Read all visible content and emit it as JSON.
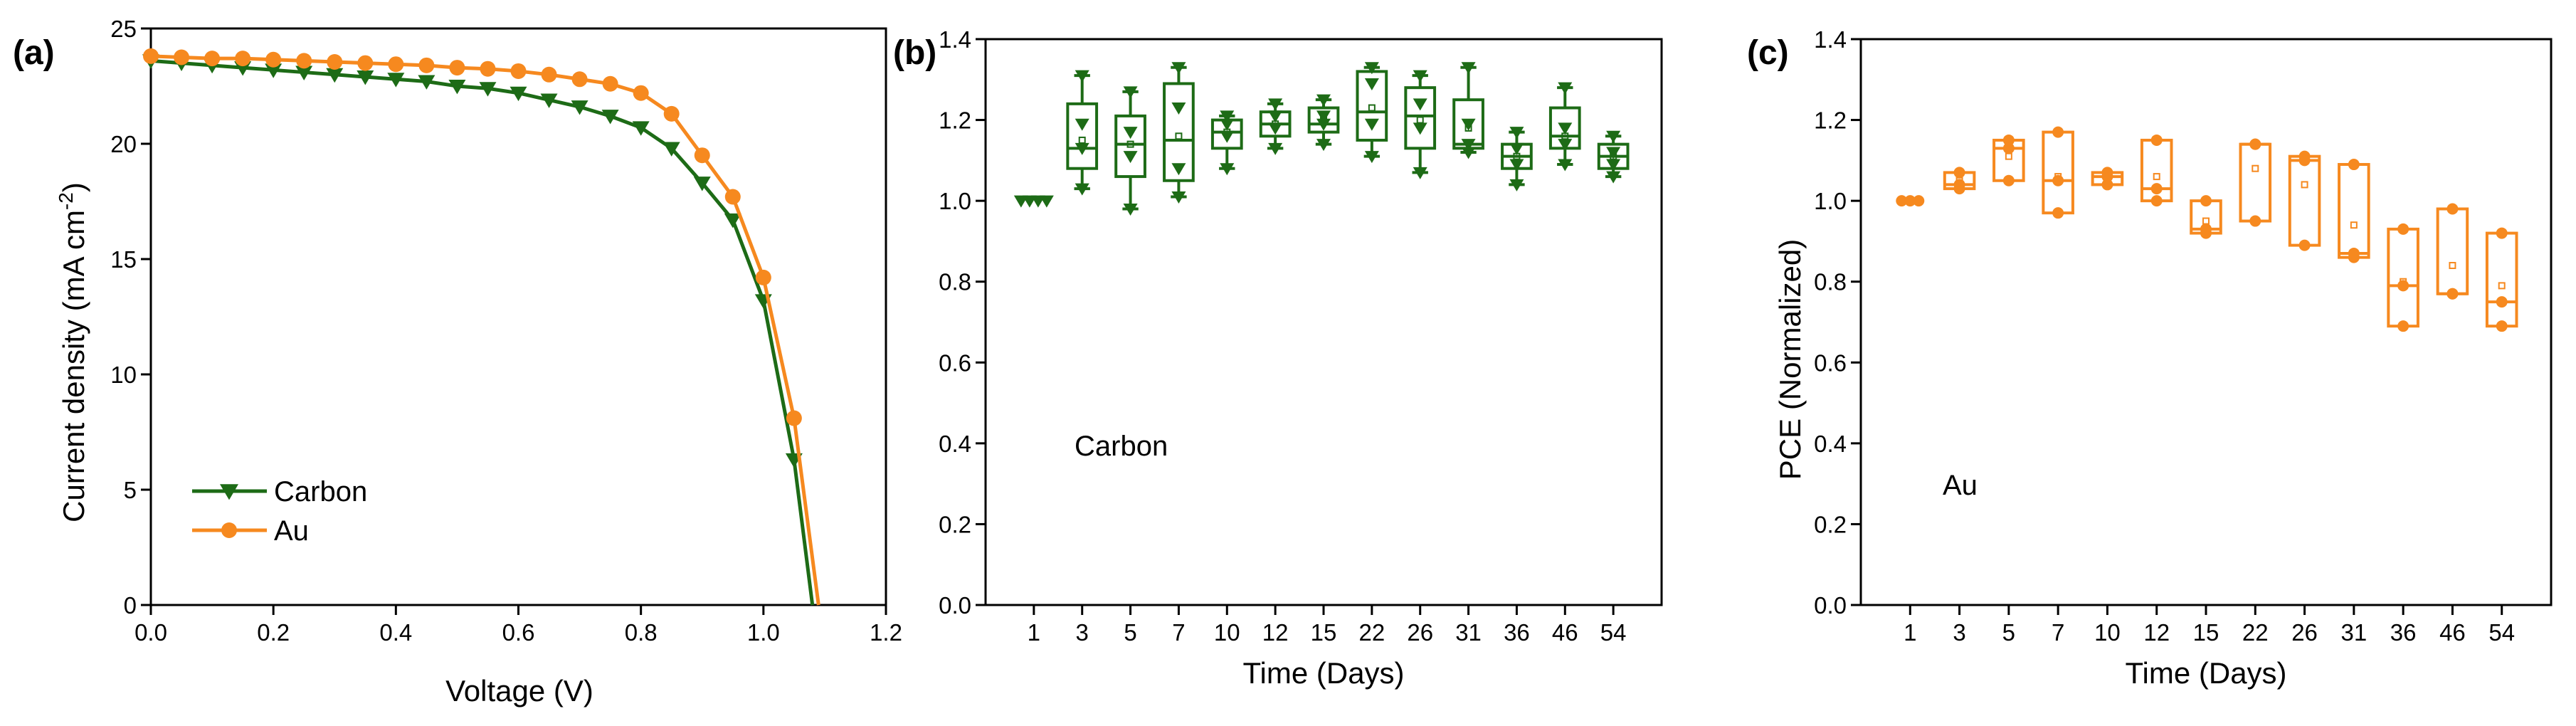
{
  "chart_data": [
    {
      "panel": "(a)",
      "type": "line",
      "xlabel": "Voltage (V)",
      "ylabel_main": "Current density (mA cm",
      "ylabel_sup": "-2",
      "ylabel_end": ")",
      "xlim": [
        0,
        1.2
      ],
      "ylim": [
        0,
        25
      ],
      "xticks": [
        0.0,
        0.2,
        0.4,
        0.6,
        0.8,
        1.0,
        1.2
      ],
      "xtick_labels": [
        "0.0",
        "0.2",
        "0.4",
        "0.6",
        "0.8",
        "1.0",
        "1.2"
      ],
      "yticks": [
        0,
        5,
        10,
        15,
        20,
        25
      ],
      "ytick_labels": [
        "0",
        "5",
        "10",
        "15",
        "20",
        "25"
      ],
      "legend_position": "bottom-left",
      "series": [
        {
          "name": "Carbon",
          "color": "#1d6b16",
          "marker": "triangle-down",
          "x": [
            0.0,
            0.05,
            0.1,
            0.15,
            0.2,
            0.25,
            0.3,
            0.35,
            0.4,
            0.45,
            0.5,
            0.55,
            0.6,
            0.65,
            0.7,
            0.75,
            0.8,
            0.85,
            0.9,
            0.95,
            1.0,
            1.05,
            1.08
          ],
          "y": [
            23.6,
            23.5,
            23.4,
            23.3,
            23.2,
            23.1,
            23.0,
            22.9,
            22.8,
            22.7,
            22.5,
            22.4,
            22.2,
            21.9,
            21.6,
            21.2,
            20.7,
            19.8,
            18.3,
            16.7,
            13.2,
            6.3,
            0.0
          ]
        },
        {
          "name": "Au",
          "color": "#f6891f",
          "marker": "circle",
          "x": [
            0.0,
            0.05,
            0.1,
            0.15,
            0.2,
            0.25,
            0.3,
            0.35,
            0.4,
            0.45,
            0.5,
            0.55,
            0.6,
            0.65,
            0.7,
            0.75,
            0.8,
            0.85,
            0.9,
            0.95,
            1.0,
            1.05,
            1.09
          ],
          "y": [
            23.8,
            23.75,
            23.7,
            23.7,
            23.65,
            23.6,
            23.55,
            23.5,
            23.45,
            23.4,
            23.3,
            23.25,
            23.15,
            23.0,
            22.8,
            22.6,
            22.2,
            21.3,
            19.5,
            17.7,
            14.2,
            8.1,
            0.0
          ]
        }
      ]
    },
    {
      "panel": "(b)",
      "type": "box",
      "annotation": "Carbon",
      "xlabel": "Time (Days)",
      "ylabel": "",
      "ylim": [
        0,
        1.4
      ],
      "yticks": [
        0.0,
        0.2,
        0.4,
        0.6,
        0.8,
        1.0,
        1.2,
        1.4
      ],
      "ytick_labels": [
        "0.0",
        "0.2",
        "0.4",
        "0.6",
        "0.8",
        "1.0",
        "1.2",
        "1.4"
      ],
      "categories": [
        "1",
        "3",
        "5",
        "7",
        "10",
        "12",
        "15",
        "22",
        "26",
        "31",
        "36",
        "46",
        "54"
      ],
      "color": "#1d6b16",
      "marker": "triangle-down",
      "boxes": [
        {
          "min": 1.0,
          "q1": 1.0,
          "median": 1.0,
          "q3": 1.0,
          "max": 1.0,
          "mean": 1.0,
          "points": [
            1.0,
            1.0,
            1.0,
            1.0
          ]
        },
        {
          "min": 1.03,
          "q1": 1.08,
          "median": 1.13,
          "q3": 1.24,
          "max": 1.31,
          "mean": 1.15,
          "points": [
            1.03,
            1.13,
            1.19,
            1.31
          ]
        },
        {
          "min": 0.98,
          "q1": 1.06,
          "median": 1.14,
          "q3": 1.21,
          "max": 1.27,
          "mean": 1.14,
          "points": [
            0.98,
            1.11,
            1.17,
            1.27
          ]
        },
        {
          "min": 1.01,
          "q1": 1.05,
          "median": 1.15,
          "q3": 1.29,
          "max": 1.33,
          "mean": 1.16,
          "points": [
            1.01,
            1.08,
            1.23,
            1.33
          ]
        },
        {
          "min": 1.08,
          "q1": 1.13,
          "median": 1.17,
          "q3": 1.2,
          "max": 1.21,
          "mean": 1.17,
          "points": [
            1.08,
            1.16,
            1.19,
            1.21
          ]
        },
        {
          "min": 1.13,
          "q1": 1.16,
          "median": 1.19,
          "q3": 1.22,
          "max": 1.24,
          "mean": 1.19,
          "points": [
            1.13,
            1.18,
            1.21,
            1.24
          ]
        },
        {
          "min": 1.14,
          "q1": 1.17,
          "median": 1.19,
          "q3": 1.23,
          "max": 1.25,
          "mean": 1.2,
          "points": [
            1.14,
            1.19,
            1.21,
            1.25
          ]
        },
        {
          "min": 1.11,
          "q1": 1.15,
          "median": 1.22,
          "q3": 1.32,
          "max": 1.33,
          "mean": 1.23,
          "points": [
            1.11,
            1.19,
            1.29,
            1.33
          ]
        },
        {
          "min": 1.07,
          "q1": 1.13,
          "median": 1.21,
          "q3": 1.28,
          "max": 1.31,
          "mean": 1.2,
          "points": [
            1.07,
            1.18,
            1.24,
            1.31
          ]
        },
        {
          "min": 1.12,
          "q1": 1.13,
          "median": 1.14,
          "q3": 1.25,
          "max": 1.33,
          "mean": 1.18,
          "points": [
            1.12,
            1.14,
            1.19,
            1.33
          ]
        },
        {
          "min": 1.04,
          "q1": 1.08,
          "median": 1.11,
          "q3": 1.14,
          "max": 1.17,
          "mean": 1.11,
          "points": [
            1.04,
            1.09,
            1.13,
            1.17
          ]
        },
        {
          "min": 1.09,
          "q1": 1.13,
          "median": 1.16,
          "q3": 1.23,
          "max": 1.28,
          "mean": 1.16,
          "points": [
            1.09,
            1.14,
            1.18,
            1.28
          ]
        },
        {
          "min": 1.06,
          "q1": 1.08,
          "median": 1.11,
          "q3": 1.14,
          "max": 1.16,
          "mean": 1.11,
          "points": [
            1.06,
            1.09,
            1.12,
            1.16
          ]
        }
      ]
    },
    {
      "panel": "(c)",
      "type": "box",
      "annotation": "Au",
      "xlabel": "Time (Days)",
      "ylabel": "PCE (Normalized)",
      "ylim": [
        0,
        1.4
      ],
      "yticks": [
        0.0,
        0.2,
        0.4,
        0.6,
        0.8,
        1.0,
        1.2,
        1.4
      ],
      "ytick_labels": [
        "0.0",
        "0.2",
        "0.4",
        "0.6",
        "0.8",
        "1.0",
        "1.2",
        "1.4"
      ],
      "categories": [
        "1",
        "3",
        "5",
        "7",
        "10",
        "12",
        "15",
        "22",
        "26",
        "31",
        "36",
        "46",
        "54"
      ],
      "color": "#f6891f",
      "marker": "circle",
      "boxes": [
        {
          "min": 1.0,
          "q1": 1.0,
          "median": 1.0,
          "q3": 1.0,
          "max": 1.0,
          "mean": 1.0,
          "points": [
            1.0,
            1.0,
            1.0
          ]
        },
        {
          "min": 1.03,
          "q1": 1.03,
          "median": 1.04,
          "q3": 1.07,
          "max": 1.07,
          "mean": 1.05,
          "points": [
            1.03,
            1.04,
            1.07
          ]
        },
        {
          "min": 1.05,
          "q1": 1.05,
          "median": 1.13,
          "q3": 1.15,
          "max": 1.15,
          "mean": 1.11,
          "points": [
            1.05,
            1.13,
            1.15
          ]
        },
        {
          "min": 0.97,
          "q1": 0.97,
          "median": 1.05,
          "q3": 1.17,
          "max": 1.17,
          "mean": 1.06,
          "points": [
            0.97,
            1.05,
            1.17
          ]
        },
        {
          "min": 1.04,
          "q1": 1.04,
          "median": 1.06,
          "q3": 1.07,
          "max": 1.07,
          "mean": 1.05,
          "points": [
            1.04,
            1.06,
            1.07
          ]
        },
        {
          "min": 1.0,
          "q1": 1.0,
          "median": 1.03,
          "q3": 1.15,
          "max": 1.15,
          "mean": 1.06,
          "points": [
            1.0,
            1.03,
            1.15
          ]
        },
        {
          "min": 0.92,
          "q1": 0.92,
          "median": 0.93,
          "q3": 1.0,
          "max": 1.0,
          "mean": 0.95,
          "points": [
            0.92,
            0.93,
            1.0
          ]
        },
        {
          "min": 0.95,
          "q1": 0.95,
          "median": 1.14,
          "q3": 1.14,
          "max": 1.14,
          "mean": 1.08,
          "points": [
            0.95,
            1.14,
            1.14
          ]
        },
        {
          "min": 0.89,
          "q1": 0.89,
          "median": 1.1,
          "q3": 1.11,
          "max": 1.11,
          "mean": 1.04,
          "points": [
            0.89,
            1.1,
            1.11
          ]
        },
        {
          "min": 0.86,
          "q1": 0.86,
          "median": 0.87,
          "q3": 1.09,
          "max": 1.09,
          "mean": 0.94,
          "points": [
            0.86,
            0.87,
            1.09
          ]
        },
        {
          "min": 0.69,
          "q1": 0.69,
          "median": 0.79,
          "q3": 0.93,
          "max": 0.93,
          "mean": 0.8,
          "points": [
            0.69,
            0.79,
            0.93
          ]
        },
        {
          "min": 0.77,
          "q1": 0.77,
          "median": 0.77,
          "q3": 0.98,
          "max": 0.98,
          "mean": 0.84,
          "points": [
            0.77,
            0.77,
            0.98
          ]
        },
        {
          "min": 0.69,
          "q1": 0.69,
          "median": 0.75,
          "q3": 0.92,
          "max": 0.92,
          "mean": 0.79,
          "points": [
            0.69,
            0.75,
            0.92
          ]
        }
      ]
    }
  ]
}
